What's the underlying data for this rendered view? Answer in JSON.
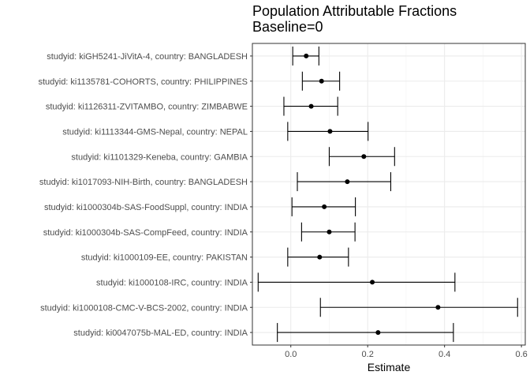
{
  "chart_data": {
    "type": "forest",
    "title": "Population Attributable Fractions",
    "subtitle": "Baseline=0",
    "xlabel": "Estimate",
    "ylabel": "",
    "xlim": [
      -0.1,
      0.61
    ],
    "xticks": [
      0.0,
      0.2,
      0.4,
      0.6
    ],
    "xtick_labels": [
      "0.0",
      "0.2",
      "0.4",
      "0.6"
    ],
    "grid": true,
    "rows": [
      {
        "label": "studyid: kiGH5241-JiVitA-4, country: BANGLADESH",
        "estimate": 0.04,
        "lower": 0.005,
        "upper": 0.073
      },
      {
        "label": "studyid: ki1135781-COHORTS, country: PHILIPPINES",
        "estimate": 0.08,
        "lower": 0.03,
        "upper": 0.127
      },
      {
        "label": "studyid: ki1126311-ZVITAMBO, country: ZIMBABWE",
        "estimate": 0.053,
        "lower": -0.018,
        "upper": 0.122
      },
      {
        "label": "studyid: ki1113344-GMS-Nepal, country: NEPAL",
        "estimate": 0.102,
        "lower": -0.008,
        "upper": 0.201
      },
      {
        "label": "studyid: ki1101329-Keneba, country: GAMBIA",
        "estimate": 0.19,
        "lower": 0.1,
        "upper": 0.27
      },
      {
        "label": "studyid: ki1017093-NIH-Birth, country: BANGLADESH",
        "estimate": 0.147,
        "lower": 0.017,
        "upper": 0.26
      },
      {
        "label": "studyid: ki1000304b-SAS-FoodSuppl, country: INDIA",
        "estimate": 0.087,
        "lower": 0.003,
        "upper": 0.168
      },
      {
        "label": "studyid: ki1000304b-SAS-CompFeed, country: INDIA",
        "estimate": 0.1,
        "lower": 0.028,
        "upper": 0.167
      },
      {
        "label": "studyid: ki1000109-EE, country: PAKISTAN",
        "estimate": 0.075,
        "lower": -0.008,
        "upper": 0.15
      },
      {
        "label": "studyid: ki1000108-IRC, country: INDIA",
        "estimate": 0.212,
        "lower": -0.085,
        "upper": 0.427
      },
      {
        "label": "studyid: ki1000108-CMC-V-BCS-2002, country: INDIA",
        "estimate": 0.383,
        "lower": 0.077,
        "upper": 0.59
      },
      {
        "label": "studyid: ki0047075b-MAL-ED, country: INDIA",
        "estimate": 0.227,
        "lower": -0.035,
        "upper": 0.423
      }
    ]
  }
}
